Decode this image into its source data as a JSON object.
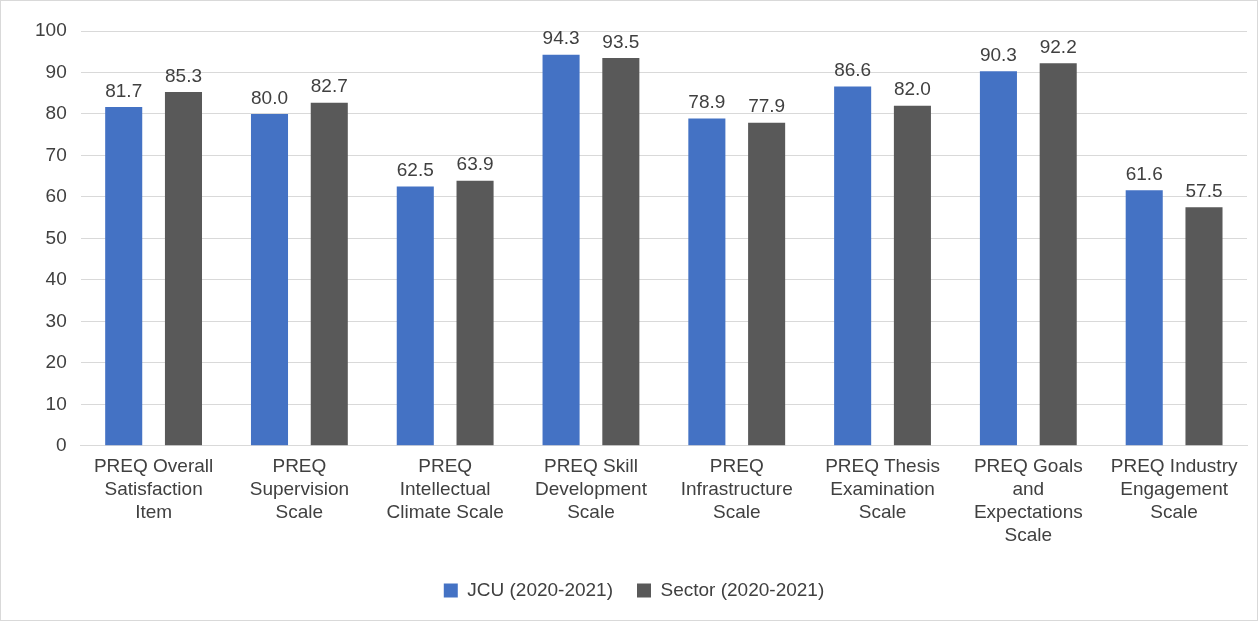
{
  "chart_data": {
    "type": "bar",
    "categories": [
      "PREQ Overall Satisfaction Item",
      "PREQ Supervision Scale",
      "PREQ Intellectual Climate Scale",
      "PREQ Skill Development Scale",
      "PREQ Infrastructure Scale",
      "PREQ Thesis Examination Scale",
      "PREQ Goals and Expectations Scale",
      "PREQ Industry Engagement Scale"
    ],
    "series": [
      {
        "name": "JCU (2020-2021)",
        "color": "#4472c4",
        "values": [
          81.7,
          80.0,
          62.5,
          94.3,
          78.9,
          86.6,
          90.3,
          61.6
        ],
        "value_labels": [
          "81.7",
          "80.0",
          "62.5",
          "94.3",
          "78.9",
          "86.6",
          "90.3",
          "61.6"
        ]
      },
      {
        "name": "Sector (2020-2021)",
        "color": "#595959",
        "values": [
          85.3,
          82.7,
          63.9,
          93.5,
          77.9,
          82.0,
          92.2,
          57.5
        ],
        "value_labels": [
          "85.3",
          "82.7",
          "63.9",
          "93.5",
          "77.9",
          "82.0",
          "92.2",
          "57.5"
        ]
      }
    ],
    "ylim": [
      0,
      100
    ],
    "yticks": [
      0,
      10,
      20,
      30,
      40,
      50,
      60,
      70,
      80,
      90,
      100
    ],
    "grid": "y",
    "legend": "bottom"
  }
}
